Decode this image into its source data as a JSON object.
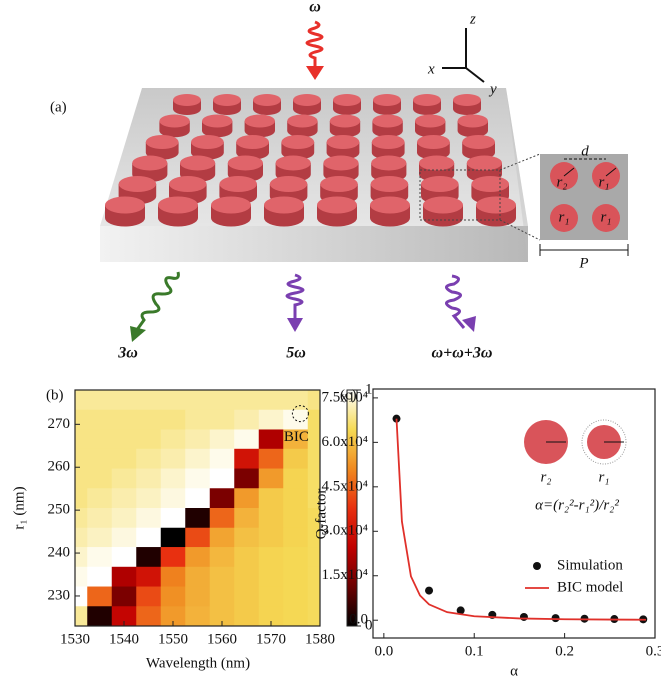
{
  "panel_a": {
    "label": "(a)",
    "input": "ω",
    "axes": {
      "x": "x",
      "y": "y",
      "z": "z"
    },
    "inset": {
      "d": "d",
      "r_top_left": "r₂",
      "r_top_right": "r₁",
      "r_bottom": [
        "r₁",
        "r₁"
      ],
      "period": "P"
    },
    "outputs": [
      "3ω",
      "5ω",
      "ω+ω+3ω"
    ]
  },
  "chart_data": [
    {
      "type": "heatmap",
      "panel_label": "(b)",
      "x_label": "Wavelength (nm)",
      "y_label": "r₁ (nm)",
      "x": [
        1530,
        1535,
        1540,
        1545,
        1550,
        1555,
        1560,
        1565,
        1570,
        1575,
        1580
      ],
      "y": [
        275.7,
        271.1,
        266.5,
        262,
        257.4,
        252.8,
        248.2,
        243.6,
        239.1,
        234.5,
        229.9,
        225.3
      ],
      "z": [
        [
          0.9,
          0.9,
          0.9,
          0.9,
          0.9,
          0.9,
          0.9,
          0.9,
          0.9,
          0.9,
          0.88
        ],
        [
          0.88,
          0.88,
          0.88,
          0.88,
          0.88,
          0.9,
          0.9,
          0.92,
          0.95,
          0.98,
          0.85
        ],
        [
          0.88,
          0.88,
          0.88,
          0.88,
          0.9,
          0.92,
          0.95,
          0.98,
          0.3,
          0.75,
          0.85
        ],
        [
          0.88,
          0.88,
          0.88,
          0.9,
          0.92,
          0.95,
          0.98,
          0.4,
          0.6,
          0.8,
          0.85
        ],
        [
          0.88,
          0.88,
          0.9,
          0.92,
          0.95,
          0.98,
          1,
          0.2,
          0.7,
          0.82,
          0.85
        ],
        [
          0.88,
          0.9,
          0.92,
          0.94,
          0.97,
          1,
          0.2,
          0.7,
          0.8,
          0.82,
          0.85
        ],
        [
          0.9,
          0.92,
          0.94,
          0.97,
          1,
          0.05,
          0.6,
          0.75,
          0.8,
          0.82,
          0.84
        ],
        [
          0.92,
          0.94,
          0.97,
          1,
          0,
          0.55,
          0.72,
          0.78,
          0.8,
          0.82,
          0.84
        ],
        [
          0.95,
          0.98,
          1,
          0.05,
          0.5,
          0.7,
          0.76,
          0.8,
          0.82,
          0.83,
          0.84
        ],
        [
          0.98,
          1,
          0.3,
          0.4,
          0.65,
          0.74,
          0.78,
          0.8,
          0.82,
          0.83,
          0.84
        ],
        [
          1,
          0.6,
          0.2,
          0.55,
          0.68,
          0.74,
          0.78,
          0.8,
          0.82,
          0.83,
          0.84
        ],
        [
          0.9,
          0.05,
          0.35,
          0.6,
          0.7,
          0.75,
          0.78,
          0.8,
          0.82,
          0.83,
          0.84
        ]
      ],
      "colormap": [
        "#000000",
        "#6a0000",
        "#c00000",
        "#e83010",
        "#f08a20",
        "#f5da55",
        "#ffffff"
      ],
      "xlim": [
        1530,
        1580
      ],
      "xticks": [
        1530,
        1540,
        1550,
        1560,
        1570,
        1580
      ],
      "ylim": [
        223,
        278
      ],
      "yticks": [
        230,
        240,
        250,
        260,
        270
      ],
      "zlim": [
        0,
        1
      ],
      "zticks": [
        0,
        1
      ],
      "annotation": {
        "text": "BIC",
        "x": 1576,
        "y": 272.5
      }
    },
    {
      "type": "scatter_line",
      "panel_label": "(c)",
      "x_label": "α",
      "y_label": "Q-factor",
      "formula": "α=(r₂²-r₁²)/r₂²",
      "inset_labels": [
        "r₂",
        "r₁"
      ],
      "xlim": [
        -0.012,
        0.3
      ],
      "xticks": [
        {
          "value": 0,
          "label": "0.0"
        },
        0.1,
        0.2,
        0.3
      ],
      "ylim": [
        -6000,
        78000
      ],
      "yticks": [
        {
          "value": 0,
          "label": "0.0"
        },
        {
          "value": 15000,
          "label": "1.5x10⁴"
        },
        {
          "value": 30000,
          "label": "3.0x10⁴"
        },
        {
          "value": 45000,
          "label": "4.5x10⁴"
        },
        {
          "value": 60000,
          "label": "6.0x10⁴"
        },
        {
          "value": 75000,
          "label": "7.5x10⁴"
        }
      ],
      "legend": "lower right",
      "series": [
        {
          "name": "Simulation",
          "kind": "scatter",
          "color": "#111111",
          "x": [
            0.014,
            0.05,
            0.085,
            0.12,
            0.155,
            0.19,
            0.222,
            0.255,
            0.287
          ],
          "values": [
            68000,
            10000,
            3300,
            1800,
            1100,
            700,
            500,
            400,
            300
          ]
        },
        {
          "name": "BIC model",
          "kind": "line",
          "color": "#e0302a",
          "x": [
            0.014,
            0.02,
            0.03,
            0.04,
            0.05,
            0.07,
            0.1,
            0.15,
            0.2,
            0.25,
            0.29
          ],
          "values": [
            68000,
            33300,
            14800,
            8330,
            5330,
            2720,
            1333,
            592,
            333,
            213,
            159
          ]
        }
      ]
    }
  ]
}
